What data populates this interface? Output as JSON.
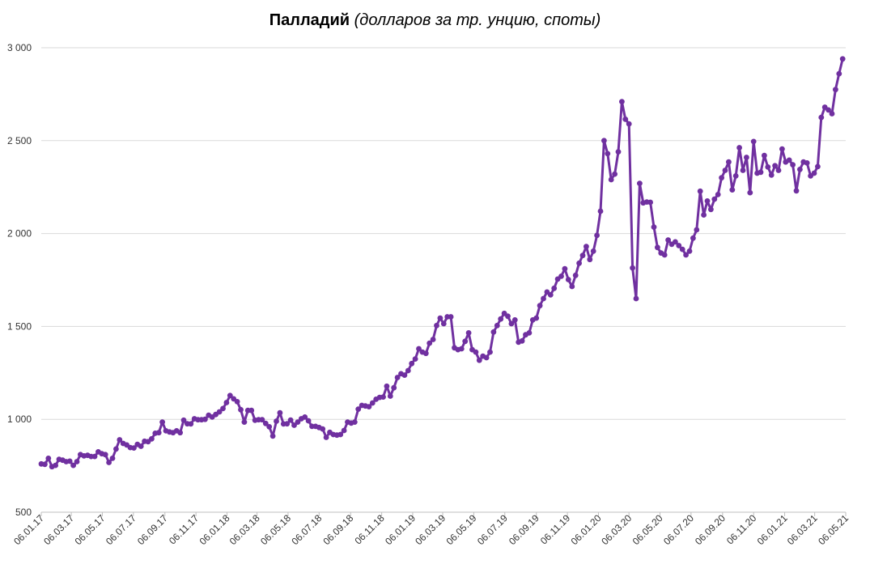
{
  "chart_data": {
    "type": "line",
    "title": "Палладий",
    "subtitle": "(долларов за тр. унцию, споты)",
    "xlabel": "",
    "ylabel": "",
    "ylim": [
      500,
      3000
    ],
    "grid": true,
    "legend": "none",
    "y_ticks": [
      {
        "value": 500,
        "label": "500"
      },
      {
        "value": 1000,
        "label": "1 000"
      },
      {
        "value": 1500,
        "label": "1 500"
      },
      {
        "value": 2000,
        "label": "2 000"
      },
      {
        "value": 2500,
        "label": "2 500"
      },
      {
        "value": 3000,
        "label": "3 000"
      }
    ],
    "x_ticks": [
      {
        "date": "2017-01-06",
        "label": "06.01.17"
      },
      {
        "date": "2017-03-06",
        "label": "06.03.17"
      },
      {
        "date": "2017-05-06",
        "label": "06.05.17"
      },
      {
        "date": "2017-07-06",
        "label": "06.07.17"
      },
      {
        "date": "2017-09-06",
        "label": "06.09.17"
      },
      {
        "date": "2017-11-06",
        "label": "06.11.17"
      },
      {
        "date": "2018-01-06",
        "label": "06.01.18"
      },
      {
        "date": "2018-03-06",
        "label": "06.03.18"
      },
      {
        "date": "2018-05-06",
        "label": "06.05.18"
      },
      {
        "date": "2018-07-06",
        "label": "06.07.18"
      },
      {
        "date": "2018-09-06",
        "label": "06.09.18"
      },
      {
        "date": "2018-11-06",
        "label": "06.11.18"
      },
      {
        "date": "2019-01-06",
        "label": "06.01.19"
      },
      {
        "date": "2019-03-06",
        "label": "06.03.19"
      },
      {
        "date": "2019-05-06",
        "label": "06.05.19"
      },
      {
        "date": "2019-07-06",
        "label": "06.07.19"
      },
      {
        "date": "2019-09-06",
        "label": "06.09.19"
      },
      {
        "date": "2019-11-06",
        "label": "06.11.19"
      },
      {
        "date": "2020-01-06",
        "label": "06.01.20"
      },
      {
        "date": "2020-03-06",
        "label": "06.03.20"
      },
      {
        "date": "2020-05-06",
        "label": "06.05.20"
      },
      {
        "date": "2020-07-06",
        "label": "06.07.20"
      },
      {
        "date": "2020-09-06",
        "label": "06.09.20"
      },
      {
        "date": "2020-11-06",
        "label": "06.11.20"
      },
      {
        "date": "2021-01-06",
        "label": "06.01.21"
      },
      {
        "date": "2021-03-06",
        "label": "06.03.21"
      },
      {
        "date": "2021-05-06",
        "label": "06.05.21"
      }
    ],
    "x_range": [
      "2017-01-06",
      "2021-05-06"
    ],
    "series": [
      {
        "color": "#7030a0",
        "points": [
          [
            "2017-01-06",
            760
          ],
          [
            "2017-01-13",
            758
          ],
          [
            "2017-01-20",
            790
          ],
          [
            "2017-01-27",
            745
          ],
          [
            "2017-02-03",
            752
          ],
          [
            "2017-02-10",
            785
          ],
          [
            "2017-02-17",
            780
          ],
          [
            "2017-02-24",
            772
          ],
          [
            "2017-03-03",
            775
          ],
          [
            "2017-03-10",
            752
          ],
          [
            "2017-03-17",
            772
          ],
          [
            "2017-03-24",
            810
          ],
          [
            "2017-03-31",
            803
          ],
          [
            "2017-04-07",
            806
          ],
          [
            "2017-04-14",
            800
          ],
          [
            "2017-04-21",
            800
          ],
          [
            "2017-04-28",
            825
          ],
          [
            "2017-05-05",
            815
          ],
          [
            "2017-05-12",
            810
          ],
          [
            "2017-05-19",
            768
          ],
          [
            "2017-05-26",
            790
          ],
          [
            "2017-06-02",
            840
          ],
          [
            "2017-06-09",
            890
          ],
          [
            "2017-06-16",
            870
          ],
          [
            "2017-06-23",
            862
          ],
          [
            "2017-06-30",
            848
          ],
          [
            "2017-07-07",
            846
          ],
          [
            "2017-07-14",
            865
          ],
          [
            "2017-07-21",
            855
          ],
          [
            "2017-07-28",
            882
          ],
          [
            "2017-08-04",
            880
          ],
          [
            "2017-08-11",
            895
          ],
          [
            "2017-08-18",
            925
          ],
          [
            "2017-08-25",
            928
          ],
          [
            "2017-09-01",
            985
          ],
          [
            "2017-09-08",
            938
          ],
          [
            "2017-09-15",
            932
          ],
          [
            "2017-09-22",
            928
          ],
          [
            "2017-09-29",
            938
          ],
          [
            "2017-10-06",
            928
          ],
          [
            "2017-10-13",
            995
          ],
          [
            "2017-10-20",
            976
          ],
          [
            "2017-10-27",
            975
          ],
          [
            "2017-11-03",
            1003
          ],
          [
            "2017-11-10",
            998
          ],
          [
            "2017-11-17",
            998
          ],
          [
            "2017-11-24",
            1000
          ],
          [
            "2017-12-01",
            1022
          ],
          [
            "2017-12-08",
            1012
          ],
          [
            "2017-12-15",
            1026
          ],
          [
            "2017-12-22",
            1040
          ],
          [
            "2017-12-29",
            1058
          ],
          [
            "2018-01-05",
            1090
          ],
          [
            "2018-01-12",
            1128
          ],
          [
            "2018-01-19",
            1110
          ],
          [
            "2018-01-26",
            1095
          ],
          [
            "2018-02-02",
            1052
          ],
          [
            "2018-02-09",
            985
          ],
          [
            "2018-02-16",
            1048
          ],
          [
            "2018-02-23",
            1048
          ],
          [
            "2018-03-02",
            995
          ],
          [
            "2018-03-09",
            998
          ],
          [
            "2018-03-16",
            998
          ],
          [
            "2018-03-23",
            978
          ],
          [
            "2018-03-30",
            960
          ],
          [
            "2018-04-06",
            910
          ],
          [
            "2018-04-13",
            990
          ],
          [
            "2018-04-20",
            1035
          ],
          [
            "2018-04-27",
            975
          ],
          [
            "2018-05-04",
            976
          ],
          [
            "2018-05-11",
            996
          ],
          [
            "2018-05-18",
            968
          ],
          [
            "2018-05-25",
            985
          ],
          [
            "2018-06-01",
            1003
          ],
          [
            "2018-06-08",
            1012
          ],
          [
            "2018-06-15",
            992
          ],
          [
            "2018-06-22",
            962
          ],
          [
            "2018-06-29",
            962
          ],
          [
            "2018-07-06",
            956
          ],
          [
            "2018-07-13",
            948
          ],
          [
            "2018-07-20",
            903
          ],
          [
            "2018-07-27",
            930
          ],
          [
            "2018-08-03",
            918
          ],
          [
            "2018-08-10",
            915
          ],
          [
            "2018-08-17",
            918
          ],
          [
            "2018-08-24",
            940
          ],
          [
            "2018-08-31",
            985
          ],
          [
            "2018-09-07",
            980
          ],
          [
            "2018-09-14",
            985
          ],
          [
            "2018-09-21",
            1055
          ],
          [
            "2018-09-28",
            1075
          ],
          [
            "2018-10-05",
            1072
          ],
          [
            "2018-10-12",
            1068
          ],
          [
            "2018-10-19",
            1088
          ],
          [
            "2018-10-26",
            1108
          ],
          [
            "2018-11-02",
            1118
          ],
          [
            "2018-11-09",
            1120
          ],
          [
            "2018-11-16",
            1178
          ],
          [
            "2018-11-23",
            1125
          ],
          [
            "2018-11-30",
            1170
          ],
          [
            "2018-12-07",
            1225
          ],
          [
            "2018-12-14",
            1245
          ],
          [
            "2018-12-21",
            1238
          ],
          [
            "2018-12-28",
            1262
          ],
          [
            "2019-01-04",
            1300
          ],
          [
            "2019-01-11",
            1325
          ],
          [
            "2019-01-18",
            1380
          ],
          [
            "2019-01-25",
            1362
          ],
          [
            "2019-02-01",
            1355
          ],
          [
            "2019-02-08",
            1410
          ],
          [
            "2019-02-15",
            1430
          ],
          [
            "2019-02-22",
            1505
          ],
          [
            "2019-03-01",
            1545
          ],
          [
            "2019-03-08",
            1515
          ],
          [
            "2019-03-15",
            1552
          ],
          [
            "2019-03-22",
            1552
          ],
          [
            "2019-03-29",
            1385
          ],
          [
            "2019-04-05",
            1375
          ],
          [
            "2019-04-12",
            1380
          ],
          [
            "2019-04-19",
            1420
          ],
          [
            "2019-04-26",
            1465
          ],
          [
            "2019-05-03",
            1375
          ],
          [
            "2019-05-10",
            1362
          ],
          [
            "2019-05-17",
            1318
          ],
          [
            "2019-05-24",
            1340
          ],
          [
            "2019-05-31",
            1332
          ],
          [
            "2019-06-07",
            1362
          ],
          [
            "2019-06-14",
            1470
          ],
          [
            "2019-06-21",
            1505
          ],
          [
            "2019-06-28",
            1540
          ],
          [
            "2019-07-05",
            1570
          ],
          [
            "2019-07-12",
            1555
          ],
          [
            "2019-07-19",
            1515
          ],
          [
            "2019-07-26",
            1535
          ],
          [
            "2019-08-02",
            1415
          ],
          [
            "2019-08-09",
            1422
          ],
          [
            "2019-08-16",
            1455
          ],
          [
            "2019-08-23",
            1465
          ],
          [
            "2019-08-30",
            1535
          ],
          [
            "2019-09-06",
            1545
          ],
          [
            "2019-09-13",
            1612
          ],
          [
            "2019-09-20",
            1650
          ],
          [
            "2019-09-27",
            1685
          ],
          [
            "2019-10-04",
            1670
          ],
          [
            "2019-10-11",
            1705
          ],
          [
            "2019-10-18",
            1755
          ],
          [
            "2019-10-25",
            1770
          ],
          [
            "2019-11-01",
            1810
          ],
          [
            "2019-11-08",
            1752
          ],
          [
            "2019-11-15",
            1715
          ],
          [
            "2019-11-22",
            1775
          ],
          [
            "2019-11-29",
            1840
          ],
          [
            "2019-12-06",
            1882
          ],
          [
            "2019-12-13",
            1930
          ],
          [
            "2019-12-20",
            1860
          ],
          [
            "2019-12-27",
            1905
          ],
          [
            "2020-01-03",
            1990
          ],
          [
            "2020-01-10",
            2120
          ],
          [
            "2020-01-17",
            2500
          ],
          [
            "2020-01-24",
            2430
          ],
          [
            "2020-01-31",
            2290
          ],
          [
            "2020-02-07",
            2320
          ],
          [
            "2020-02-14",
            2440
          ],
          [
            "2020-02-21",
            2710
          ],
          [
            "2020-02-28",
            2615
          ],
          [
            "2020-03-06",
            2590
          ],
          [
            "2020-03-13",
            1815
          ],
          [
            "2020-03-20",
            1650
          ],
          [
            "2020-03-27",
            2270
          ],
          [
            "2020-04-03",
            2165
          ],
          [
            "2020-04-10",
            2170
          ],
          [
            "2020-04-17",
            2168
          ],
          [
            "2020-04-24",
            2035
          ],
          [
            "2020-05-01",
            1925
          ],
          [
            "2020-05-08",
            1895
          ],
          [
            "2020-05-15",
            1885
          ],
          [
            "2020-05-22",
            1965
          ],
          [
            "2020-05-29",
            1942
          ],
          [
            "2020-06-05",
            1955
          ],
          [
            "2020-06-12",
            1935
          ],
          [
            "2020-06-19",
            1915
          ],
          [
            "2020-06-26",
            1885
          ],
          [
            "2020-07-03",
            1905
          ],
          [
            "2020-07-10",
            1975
          ],
          [
            "2020-07-17",
            2020
          ],
          [
            "2020-07-24",
            2228
          ],
          [
            "2020-07-31",
            2100
          ],
          [
            "2020-08-07",
            2175
          ],
          [
            "2020-08-14",
            2130
          ],
          [
            "2020-08-21",
            2185
          ],
          [
            "2020-08-28",
            2210
          ],
          [
            "2020-09-04",
            2300
          ],
          [
            "2020-09-11",
            2340
          ],
          [
            "2020-09-18",
            2385
          ],
          [
            "2020-09-25",
            2235
          ],
          [
            "2020-10-02",
            2310
          ],
          [
            "2020-10-09",
            2462
          ],
          [
            "2020-10-16",
            2340
          ],
          [
            "2020-10-23",
            2410
          ],
          [
            "2020-10-30",
            2220
          ],
          [
            "2020-11-06",
            2495
          ],
          [
            "2020-11-13",
            2325
          ],
          [
            "2020-11-20",
            2330
          ],
          [
            "2020-11-27",
            2420
          ],
          [
            "2020-12-04",
            2358
          ],
          [
            "2020-12-11",
            2315
          ],
          [
            "2020-12-18",
            2365
          ],
          [
            "2020-12-25",
            2340
          ],
          [
            "2021-01-01",
            2455
          ],
          [
            "2021-01-08",
            2385
          ],
          [
            "2021-01-15",
            2395
          ],
          [
            "2021-01-22",
            2370
          ],
          [
            "2021-01-29",
            2230
          ],
          [
            "2021-02-05",
            2345
          ],
          [
            "2021-02-12",
            2385
          ],
          [
            "2021-02-19",
            2380
          ],
          [
            "2021-02-26",
            2310
          ],
          [
            "2021-03-05",
            2325
          ],
          [
            "2021-03-12",
            2360
          ],
          [
            "2021-03-19",
            2625
          ],
          [
            "2021-03-26",
            2680
          ],
          [
            "2021-04-02",
            2665
          ],
          [
            "2021-04-09",
            2645
          ],
          [
            "2021-04-16",
            2775
          ],
          [
            "2021-04-23",
            2860
          ],
          [
            "2021-04-30",
            2940
          ]
        ]
      }
    ]
  }
}
